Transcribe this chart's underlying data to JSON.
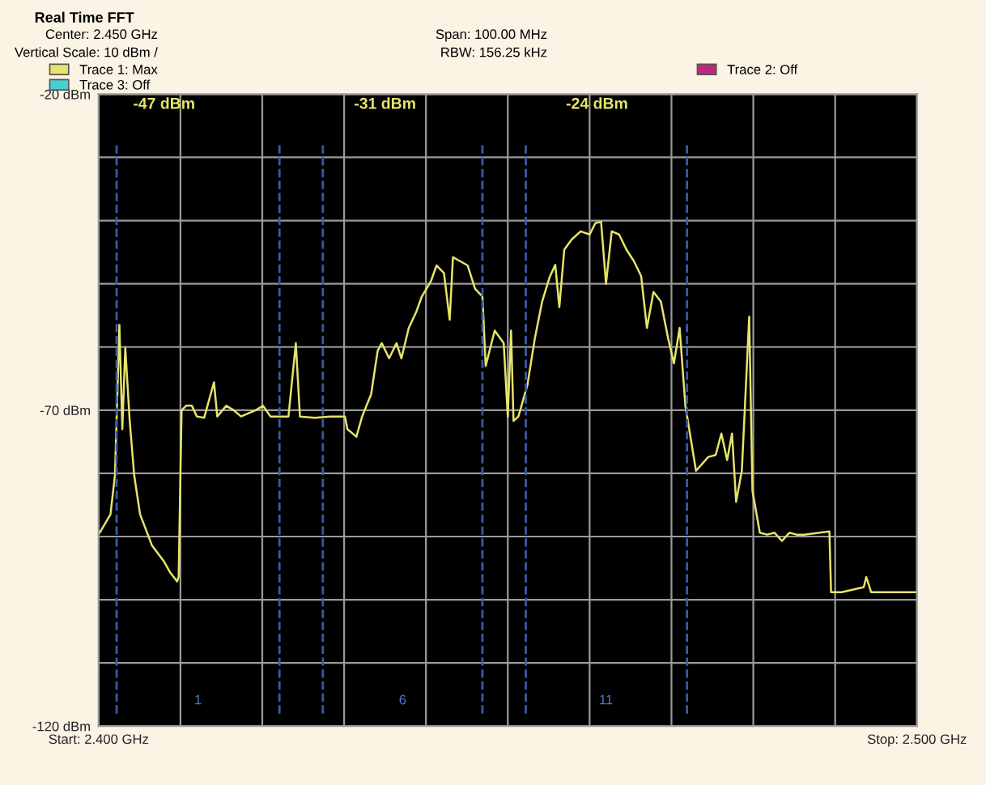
{
  "chart_data": {
    "type": "line",
    "title": "Real Time FFT",
    "annotations": [
      "Center: 2.450 GHz",
      "Vertical Scale: 10 dBm /",
      "Span: 100.00 MHz",
      "RBW: 156.25 kHz",
      "-47 dBm",
      "-31 dBm",
      "-24 dBm",
      "1",
      "6",
      "11"
    ],
    "series": [
      {
        "name": "Trace 1: Max",
        "color": "#e6e46a",
        "x": [
          2.4,
          2.40145,
          2.402,
          2.40254,
          2.4029,
          2.40326,
          2.4038,
          2.40435,
          2.40507,
          2.40652,
          2.40797,
          2.4087,
          2.4096,
          2.40978,
          2.41014,
          2.4107,
          2.4114,
          2.412,
          2.4129,
          2.4141,
          2.4145,
          2.4156,
          2.4165,
          2.4174,
          2.4192,
          2.4201,
          2.421,
          2.4232,
          2.4241,
          2.4246,
          2.4264,
          2.4283,
          2.4301,
          2.4304,
          2.4315,
          2.4322,
          2.4333,
          2.4341,
          2.4346,
          2.4355,
          2.4364,
          2.437,
          2.4379,
          2.4388,
          2.4395,
          2.4406,
          2.4413,
          2.4422,
          2.4429,
          2.4433,
          2.444,
          2.4451,
          2.446,
          2.4469,
          2.4473,
          2.4484,
          2.4495,
          2.45,
          2.4504,
          2.4507,
          2.4513,
          2.4524,
          2.4533,
          2.4542,
          2.4551,
          2.4558,
          2.4563,
          2.4569,
          2.4578,
          2.4589,
          2.46,
          2.4607,
          2.4614,
          2.462,
          2.4627,
          2.4636,
          2.4645,
          2.4654,
          2.4663,
          2.467,
          2.4678,
          2.4687,
          2.4696,
          2.4703,
          2.471,
          2.4717,
          2.473,
          2.4745,
          2.4754,
          2.4761,
          2.4768,
          2.4774,
          2.4779,
          2.4786,
          2.4795,
          2.4799,
          2.4808,
          2.4817,
          2.4826,
          2.4835,
          2.4844,
          2.4853,
          2.4862,
          2.4893,
          2.4895,
          2.4908,
          2.4935,
          2.4938,
          2.4944,
          2.4971,
          2.5
        ],
        "values": [
          -89.7,
          -86.5,
          -80.3,
          -56.5,
          -73.0,
          -60.1,
          -71.7,
          -80.3,
          -86.5,
          -91.4,
          -93.9,
          -95.6,
          -97.1,
          -96.4,
          -70.0,
          -69.3,
          -69.3,
          -71.0,
          -71.2,
          -65.6,
          -71.0,
          -69.3,
          -70.0,
          -71.0,
          -70.0,
          -69.3,
          -71.0,
          -71.0,
          -59.4,
          -71.0,
          -71.2,
          -71.0,
          -71.0,
          -73.0,
          -74.2,
          -71.0,
          -67.5,
          -60.6,
          -59.4,
          -61.8,
          -59.4,
          -61.8,
          -57.0,
          -54.5,
          -52.0,
          -49.6,
          -47.1,
          -48.3,
          -55.7,
          -45.8,
          -46.3,
          -47.1,
          -50.8,
          -52.0,
          -63.0,
          -57.4,
          -59.4,
          -71.0,
          -57.4,
          -71.7,
          -71.0,
          -66.0,
          -58.7,
          -52.8,
          -49.0,
          -47.0,
          -53.7,
          -44.6,
          -43.0,
          -41.7,
          -42.2,
          -40.4,
          -40.2,
          -50.0,
          -41.7,
          -42.2,
          -44.6,
          -46.4,
          -48.8,
          -57.0,
          -51.3,
          -52.8,
          -58.7,
          -62.6,
          -57.0,
          -69.3,
          -79.6,
          -77.4,
          -77.1,
          -73.7,
          -77.9,
          -73.7,
          -84.5,
          -79.6,
          -55.2,
          -82.8,
          -89.4,
          -89.7,
          -89.4,
          -90.7,
          -89.4,
          -89.7,
          -89.7,
          -89.2,
          -98.8,
          -98.8,
          -98.0,
          -96.4,
          -98.8,
          -98.8,
          -98.8
        ]
      },
      {
        "name": "Trace 2: Off",
        "color": "#c0287c"
      },
      {
        "name": "Trace 3: Off",
        "color": "#48d0d0"
      }
    ],
    "ref_lines": [
      {
        "axis": "x",
        "value": 2.4022,
        "color": "#3a5aa8",
        "line_style": "dashed"
      },
      {
        "axis": "x",
        "value": 2.4221,
        "color": "#3a5aa8",
        "line_style": "dashed"
      },
      {
        "axis": "x",
        "value": 2.4274,
        "color": "#3a5aa8",
        "line_style": "dashed"
      },
      {
        "axis": "x",
        "value": 2.4469,
        "color": "#3a5aa8",
        "line_style": "dashed"
      },
      {
        "axis": "x",
        "value": 2.4522,
        "color": "#3a5aa8",
        "line_style": "dashed"
      },
      {
        "axis": "x",
        "value": 2.4719,
        "color": "#3a5aa8",
        "line_style": "dashed"
      }
    ],
    "xlim": [
      2.4,
      2.5
    ],
    "xticks": [
      {
        "value": 2.4,
        "label": "Start: 2.400 GHz"
      },
      {
        "value": 2.41,
        "label": null
      },
      {
        "value": 2.42,
        "label": null
      },
      {
        "value": 2.43,
        "label": null
      },
      {
        "value": 2.44,
        "label": null
      },
      {
        "value": 2.45,
        "label": null
      },
      {
        "value": 2.46,
        "label": null
      },
      {
        "value": 2.47,
        "label": null
      },
      {
        "value": 2.48,
        "label": null
      },
      {
        "value": 2.49,
        "label": null
      },
      {
        "value": 2.5,
        "label": "Stop: 2.500 GHz"
      }
    ],
    "ylim": [
      -120,
      -20
    ],
    "yticks": [
      {
        "value": -120,
        "label": "-120 dBm"
      },
      {
        "value": -110,
        "label": null
      },
      {
        "value": -100,
        "label": null
      },
      {
        "value": -90,
        "label": null
      },
      {
        "value": -80,
        "label": null
      },
      {
        "value": -70,
        "label": "-70 dBm"
      },
      {
        "value": -60,
        "label": null
      },
      {
        "value": -50,
        "label": null
      },
      {
        "value": -40,
        "label": null
      },
      {
        "value": -30,
        "label": null
      },
      {
        "value": -20,
        "label": "-20 dBm"
      }
    ],
    "grid": true,
    "legend": "top left",
    "marker": "none",
    "line_style": "solid"
  }
}
